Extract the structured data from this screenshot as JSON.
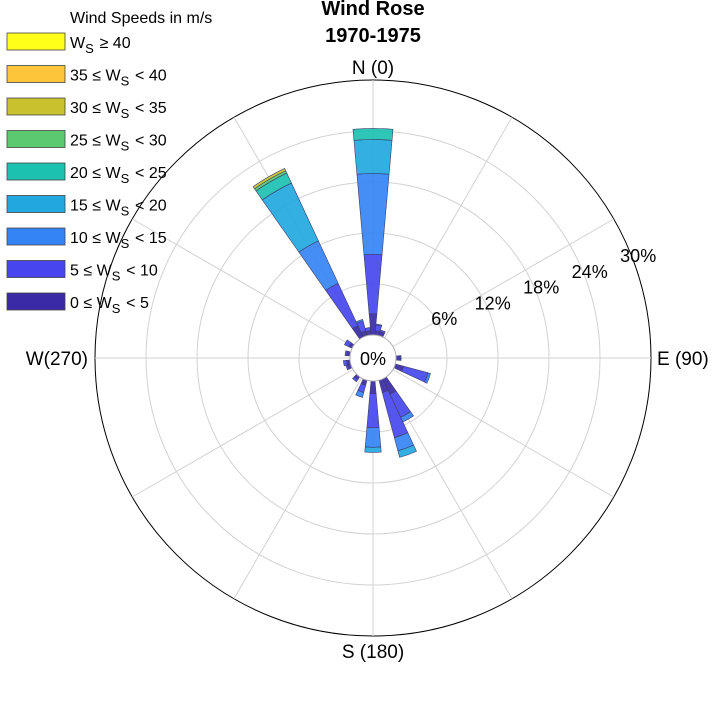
{
  "chart_data": {
    "type": "wind-rose",
    "title": [
      "Wind Rose",
      "1970-1975"
    ],
    "directions": {
      "north": "N (0)",
      "east": "E (90)",
      "south": "S (180)",
      "west": "W(270)"
    },
    "radial_ticks": [
      "0%",
      "6%",
      "12%",
      "18%",
      "24%",
      "30%"
    ],
    "radial_max": 30,
    "legend": {
      "title": "Wind Speeds in m/s",
      "bins": [
        {
          "label": "W_S ≥ 40",
          "color": "#ffff1a"
        },
        {
          "label": "35 ≤ W_S < 40",
          "color": "#fdc63a"
        },
        {
          "label": "30 ≤ W_S < 35",
          "color": "#c9c22e"
        },
        {
          "label": "25 ≤ W_S < 30",
          "color": "#5ac96f"
        },
        {
          "label": "20 ≤ W_S < 25",
          "color": "#1cc1b0"
        },
        {
          "label": "15 ≤ W_S < 20",
          "color": "#22a8de"
        },
        {
          "label": "10 ≤ W_S < 15",
          "color": "#3484f5"
        },
        {
          "label": "5 ≤ W_S < 10",
          "color": "#4746ee"
        },
        {
          "label": "0 ≤ W_S < 5",
          "color": "#3b2aa6"
        }
      ]
    },
    "sector_width_deg": 10,
    "bin_order_inner_to_outer": [
      "0-5",
      "5-10",
      "10-15",
      "15-20",
      "20-25",
      "25-30",
      "30-35",
      "35-40",
      ">=40"
    ],
    "sectors": [
      {
        "direction": 0,
        "cumulative": [
          2.5,
          9.5,
          19.0,
          23.0,
          24.3,
          24.3,
          24.3,
          24.3,
          24.3
        ]
      },
      {
        "direction": 10,
        "cumulative": [
          0.5,
          1.2,
          1.3,
          1.3,
          1.3,
          1.3,
          1.3,
          1.3,
          1.3
        ]
      },
      {
        "direction": 20,
        "cumulative": [
          0.5,
          0.7,
          0.7,
          0.7,
          0.7,
          0.7,
          0.7,
          0.7,
          0.7
        ]
      },
      {
        "direction": 90,
        "cumulative": [
          0.5,
          0.6,
          0.6,
          0.6,
          0.6,
          0.6,
          0.6,
          0.6,
          0.6
        ]
      },
      {
        "direction": 110,
        "cumulative": [
          1.0,
          4.0,
          4.3,
          4.3,
          4.3,
          4.3,
          4.3,
          4.3,
          4.3
        ]
      },
      {
        "direction": 150,
        "cumulative": [
          2.0,
          5.0,
          5.6,
          5.6,
          5.6,
          5.6,
          5.6,
          5.6,
          5.6
        ]
      },
      {
        "direction": 160,
        "cumulative": [
          1.5,
          7.0,
          8.6,
          9.4,
          9.4,
          9.4,
          9.4,
          9.4,
          9.4
        ]
      },
      {
        "direction": 180,
        "cumulative": [
          1.5,
          5.5,
          7.8,
          8.4,
          8.4,
          8.4,
          8.4,
          8.4,
          8.4
        ]
      },
      {
        "direction": 200,
        "cumulative": [
          0.6,
          1.5,
          2.1,
          2.1,
          2.1,
          2.1,
          2.1,
          2.1,
          2.1
        ]
      },
      {
        "direction": 220,
        "cumulative": [
          0.4,
          0.7,
          0.7,
          0.7,
          0.7,
          0.7,
          0.7,
          0.7,
          0.7
        ]
      },
      {
        "direction": 250,
        "cumulative": [
          0.4,
          0.6,
          0.6,
          0.6,
          0.6,
          0.6,
          0.6,
          0.6,
          0.6
        ]
      },
      {
        "direction": 260,
        "cumulative": [
          0.4,
          0.8,
          0.8,
          0.8,
          0.8,
          0.8,
          0.8,
          0.8,
          0.8
        ]
      },
      {
        "direction": 280,
        "cumulative": [
          0.4,
          0.6,
          0.6,
          0.6,
          0.6,
          0.6,
          0.6,
          0.6,
          0.6
        ]
      },
      {
        "direction": 300,
        "cumulative": [
          0.4,
          1.0,
          1.0,
          1.0,
          1.0,
          1.0,
          1.0,
          1.0,
          1.0
        ]
      },
      {
        "direction": 330,
        "cumulative": [
          1.5,
          7.0,
          12.5,
          20.0,
          21.3,
          21.6,
          21.9,
          21.9,
          21.9
        ]
      },
      {
        "direction": 340,
        "cumulative": [
          0.6,
          1.8,
          2.0,
          2.0,
          2.0,
          2.0,
          2.0,
          2.0,
          2.0
        ]
      },
      {
        "direction": 350,
        "cumulative": [
          0.5,
          0.9,
          0.9,
          0.9,
          0.9,
          0.9,
          0.9,
          0.9,
          0.9
        ]
      }
    ]
  }
}
